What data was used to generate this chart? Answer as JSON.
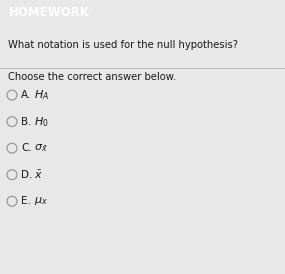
{
  "header_text": "HOMEWORK",
  "header_bg": "#1a9bbf",
  "header_text_color": "#ffffff",
  "bg_color": "#e8e8e8",
  "content_bg": "#ececec",
  "question": "What notation is used for the null hypothesis?",
  "instruction": "Choose the correct answer below.",
  "question_fontsize": 7.2,
  "instruction_fontsize": 7.2,
  "option_fontsize": 7.5,
  "header_fontsize": 8.5,
  "letters": [
    "A.",
    "B.",
    "C.",
    "D.",
    "E."
  ],
  "math_labels": [
    "H_A",
    "H_0",
    "sigma_x",
    "x_bar",
    "mu_x"
  ]
}
